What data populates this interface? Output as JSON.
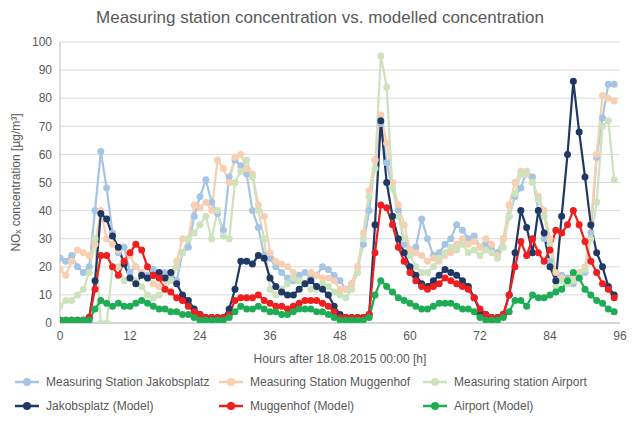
{
  "chart_data": {
    "type": "line",
    "title": "Measuring station concentration vs. modelled concentration",
    "x_label": "Hours after 18.08.2015 00:00 [h]",
    "y_label": "NOₓ concentration [µg/m³]",
    "x": [
      0,
      1,
      2,
      3,
      4,
      5,
      6,
      7,
      8,
      9,
      10,
      11,
      12,
      13,
      14,
      15,
      16,
      17,
      18,
      19,
      20,
      21,
      22,
      23,
      24,
      25,
      26,
      27,
      28,
      29,
      30,
      31,
      32,
      33,
      34,
      35,
      36,
      37,
      38,
      39,
      40,
      41,
      42,
      43,
      44,
      45,
      46,
      47,
      48,
      49,
      50,
      51,
      52,
      53,
      54,
      55,
      56,
      57,
      58,
      59,
      60,
      61,
      62,
      63,
      64,
      65,
      66,
      67,
      68,
      69,
      70,
      71,
      72,
      73,
      74,
      75,
      76,
      77,
      78,
      79,
      80,
      81,
      82,
      83,
      84,
      85,
      86,
      87,
      88,
      89,
      90,
      91,
      92,
      93,
      94,
      95
    ],
    "xlim": [
      0,
      96
    ],
    "xticks": [
      0,
      12,
      24,
      36,
      48,
      60,
      72,
      84,
      96
    ],
    "ylim": [
      0,
      100
    ],
    "yticks": [
      0,
      10,
      20,
      30,
      40,
      50,
      60,
      70,
      80,
      90,
      100
    ],
    "grid": true,
    "legend": "bottom",
    "series": [
      {
        "name": "Measuring Station Jakobsplatz",
        "color": "#a6c4e4",
        "marker": "circle",
        "line_style": "solid",
        "values": [
          23,
          22,
          24,
          20,
          18,
          20,
          40,
          61,
          48,
          32,
          25,
          27,
          18,
          20,
          18,
          17,
          19,
          16,
          18,
          16,
          15,
          25,
          27,
          38,
          45,
          51,
          43,
          39,
          33,
          52,
          58,
          56,
          53,
          40,
          34,
          24,
          23,
          20,
          18,
          16,
          15,
          17,
          18,
          16,
          17,
          20,
          19,
          17,
          15,
          12,
          14,
          20,
          28,
          40,
          58,
          71,
          57,
          48,
          40,
          28,
          26,
          27,
          37,
          30,
          24,
          25,
          28,
          30,
          35,
          33,
          30,
          31,
          27,
          28,
          26,
          25,
          30,
          38,
          45,
          48,
          54,
          52,
          40,
          30,
          22,
          15,
          17,
          16,
          14,
          16,
          18,
          32,
          59,
          73,
          85,
          85
        ]
      },
      {
        "name": "Measuring Station Muggenhof",
        "color": "#f9cfb2",
        "marker": "circle",
        "line_style": "solid",
        "values": [
          19,
          17,
          22,
          26,
          25,
          24,
          28,
          40,
          30,
          28,
          26,
          22,
          24,
          20,
          18,
          16,
          14,
          13,
          15,
          18,
          22,
          30,
          30,
          42,
          41,
          43,
          40,
          58,
          55,
          50,
          59,
          60,
          55,
          53,
          42,
          38,
          25,
          22,
          21,
          20,
          18,
          15,
          14,
          18,
          17,
          16,
          16,
          15,
          12,
          12,
          14,
          20,
          32,
          47,
          58,
          74,
          64,
          50,
          42,
          35,
          26,
          25,
          24,
          22,
          23,
          22,
          24,
          25,
          28,
          30,
          28,
          29,
          27,
          30,
          28,
          24,
          30,
          42,
          50,
          54,
          53,
          50,
          45,
          40,
          30,
          18,
          16,
          15,
          16,
          18,
          20,
          35,
          60,
          81,
          80,
          79
        ]
      },
      {
        "name": "Measuring station Airport",
        "color": "#cde3bd",
        "marker": "circle",
        "line_style": "solid",
        "values": [
          6,
          8,
          8,
          10,
          12,
          18,
          30,
          0,
          0,
          20,
          20,
          15,
          16,
          15,
          13,
          10,
          9,
          10,
          12,
          15,
          20,
          25,
          30,
          32,
          35,
          38,
          30,
          40,
          31,
          30,
          50,
          54,
          58,
          52,
          40,
          30,
          12,
          10,
          12,
          14,
          16,
          15,
          14,
          12,
          12,
          14,
          13,
          11,
          10,
          9,
          12,
          18,
          30,
          45,
          55,
          95,
          84,
          48,
          38,
          30,
          24,
          20,
          18,
          18,
          20,
          23,
          25,
          27,
          26,
          28,
          25,
          26,
          24,
          26,
          25,
          23,
          27,
          38,
          46,
          53,
          54,
          50,
          44,
          38,
          28,
          13,
          15,
          14,
          15,
          17,
          19,
          30,
          43,
          70,
          72,
          51
        ]
      },
      {
        "name": "Jakobsplatz (Model)",
        "color": "#203864",
        "marker": "circle",
        "line_style": "solid",
        "values": [
          1,
          1,
          1,
          1,
          1,
          2,
          15,
          39,
          37,
          31,
          27,
          21,
          16,
          14,
          17,
          16,
          17,
          18,
          16,
          18,
          14,
          10,
          8,
          5,
          3,
          2,
          2,
          2,
          2,
          5,
          12,
          22,
          22,
          21,
          24,
          23,
          16,
          13,
          11,
          10,
          10,
          12,
          14,
          15,
          13,
          12,
          10,
          6,
          3,
          2,
          2,
          2,
          2,
          3,
          35,
          72,
          50,
          38,
          30,
          25,
          20,
          17,
          14,
          13,
          15,
          17,
          19,
          18,
          17,
          15,
          13,
          9,
          4,
          3,
          2,
          2,
          3,
          10,
          25,
          40,
          34,
          25,
          40,
          32,
          20,
          15,
          38,
          60,
          86,
          68,
          52,
          35,
          25,
          20,
          13,
          10
        ]
      },
      {
        "name": "Muggenhof (Model)",
        "color": "#f01e1e",
        "marker": "circle",
        "line_style": "solid",
        "values": [
          1,
          1,
          1,
          1,
          1,
          2,
          12,
          24,
          24,
          20,
          17,
          22,
          25,
          28,
          26,
          20,
          17,
          16,
          12,
          11,
          9,
          8,
          6,
          4,
          3,
          2,
          2,
          2,
          2,
          3,
          8,
          9,
          9,
          9,
          10,
          8,
          7,
          6,
          6,
          5,
          6,
          7,
          8,
          8,
          8,
          7,
          6,
          4,
          2,
          2,
          2,
          2,
          2,
          3,
          25,
          42,
          41,
          35,
          27,
          22,
          18,
          15,
          13,
          12,
          13,
          14,
          16,
          15,
          14,
          13,
          12,
          9,
          5,
          3,
          2,
          2,
          3,
          10,
          20,
          29,
          24,
          30,
          25,
          22,
          26,
          33,
          32,
          35,
          40,
          35,
          29,
          22,
          18,
          14,
          12,
          9
        ]
      },
      {
        "name": "Airport (Model)",
        "color": "#1ead55",
        "marker": "circle",
        "line_style": "solid",
        "values": [
          1,
          1,
          1,
          1,
          1,
          1,
          5,
          8,
          7,
          6,
          7,
          6,
          6,
          7,
          8,
          7,
          6,
          5,
          5,
          4,
          4,
          3,
          3,
          2,
          1,
          1,
          1,
          1,
          1,
          2,
          4,
          6,
          5,
          5,
          6,
          5,
          4,
          4,
          3,
          3,
          4,
          5,
          5,
          5,
          4,
          4,
          3,
          2,
          1,
          1,
          1,
          1,
          1,
          2,
          10,
          15,
          13,
          11,
          9,
          8,
          7,
          6,
          5,
          5,
          6,
          7,
          7,
          7,
          6,
          5,
          5,
          4,
          2,
          1,
          1,
          1,
          2,
          4,
          8,
          8,
          6,
          10,
          9,
          9,
          10,
          11,
          12,
          15,
          18,
          16,
          12,
          10,
          8,
          7,
          5,
          4
        ]
      }
    ]
  }
}
